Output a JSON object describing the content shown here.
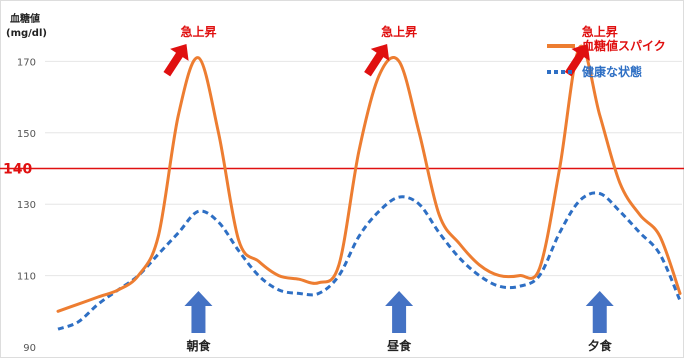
{
  "chart_data": {
    "type": "line",
    "ylabel": "血糖値",
    "yunit": "(mg/dl)",
    "ylim": [
      90,
      178
    ],
    "yticks": [
      90,
      110,
      130,
      150,
      170
    ],
    "threshold": {
      "value": 140,
      "label": "140",
      "color": "#e01010"
    },
    "x": [
      0,
      1,
      2,
      3,
      4,
      5,
      6,
      7,
      8,
      9,
      10,
      11,
      12,
      13,
      14,
      15,
      16,
      17,
      18,
      19,
      20,
      21,
      22,
      23,
      24,
      25,
      26,
      27,
      28,
      29,
      30,
      31
    ],
    "series": [
      {
        "name": "血糖値スパイク",
        "color": "#ed7d31",
        "style": "solid",
        "values": [
          100,
          102,
          104,
          106,
          110,
          121,
          155,
          171,
          150,
          120,
          114,
          110,
          109,
          108,
          113,
          145,
          166,
          170,
          150,
          127,
          119,
          113,
          110,
          110,
          112,
          140,
          174,
          155,
          136,
          127,
          121,
          105
        ]
      },
      {
        "name": "健康な状態",
        "color": "#2e6fc4",
        "style": "dotted",
        "values": [
          95,
          97,
          102,
          106,
          110,
          116,
          122,
          128,
          125,
          117,
          110,
          106,
          105,
          105,
          110,
          121,
          128,
          132,
          130,
          122,
          115,
          110,
          107,
          107,
          110,
          122,
          131,
          133,
          128,
          122,
          116,
          103
        ]
      }
    ],
    "annotations": [
      {
        "text": "急上昇",
        "x": 7
      },
      {
        "text": "急上昇",
        "x": 17
      },
      {
        "text": "急上昇",
        "x": 27
      }
    ],
    "meals": [
      {
        "label": "朝食",
        "x": 7
      },
      {
        "label": "昼食",
        "x": 17
      },
      {
        "label": "夕食",
        "x": 27
      }
    ],
    "colors": {
      "up_arrow": "#e01010",
      "meal_arrow": "#4472c4"
    }
  }
}
